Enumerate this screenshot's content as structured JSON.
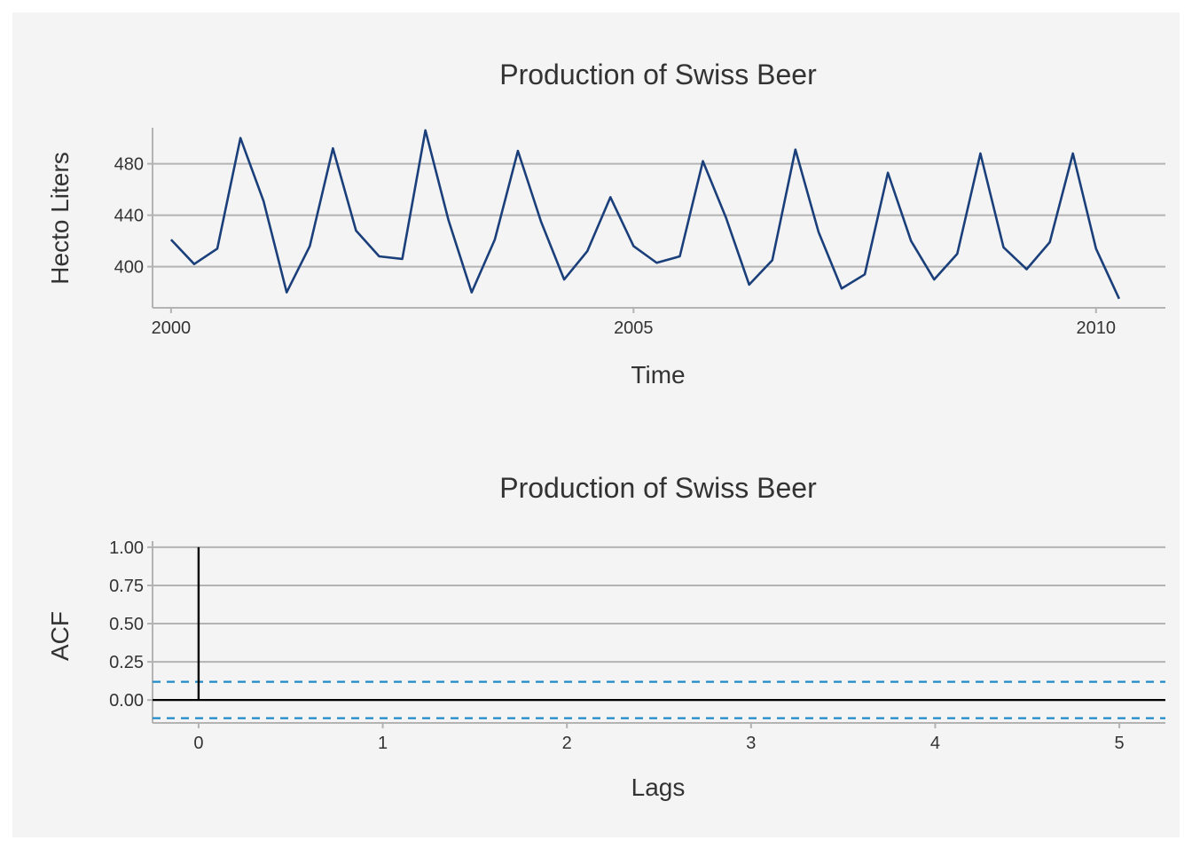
{
  "colors": {
    "panel_background": "#f4f4f4",
    "series_line": "#1a3f7a",
    "acf_bar": "#000000",
    "confidence_band": "#1f8ac9",
    "grid": "#b3b3b3"
  },
  "chart_data": [
    {
      "type": "line",
      "title": "Production of Swiss Beer",
      "xlabel": "Time",
      "ylabel": "Hecto Liters",
      "xlim": [
        1999.8,
        2010.75
      ],
      "ylim": [
        368,
        508
      ],
      "x_ticks": [
        2000,
        2005,
        2010
      ],
      "x_tick_labels": [
        "2000",
        "2005",
        "2010"
      ],
      "y_ticks": [
        400,
        440,
        480
      ],
      "y_tick_labels": [
        "400",
        "440",
        "480"
      ],
      "grid": "horizontal",
      "series": [
        {
          "x": [
            2000.0,
            2000.25,
            2000.5,
            2000.75,
            2001.0,
            2001.25,
            2001.5,
            2001.75,
            2002.0,
            2002.25,
            2002.5,
            2002.75,
            2003.0,
            2003.25,
            2003.5,
            2003.75,
            2004.0,
            2004.25,
            2004.5,
            2004.75,
            2005.0,
            2005.25,
            2005.5,
            2005.75,
            2006.0,
            2006.25,
            2006.5,
            2006.75,
            2007.0,
            2007.25,
            2007.5,
            2007.75,
            2008.0,
            2008.25,
            2008.5,
            2008.75,
            2009.0,
            2009.25,
            2009.5,
            2009.75,
            2010.0,
            2010.25
          ],
          "values": [
            421,
            402,
            414,
            500,
            451,
            380,
            416,
            492,
            428,
            408,
            406,
            506,
            436,
            380,
            421,
            490,
            435,
            390,
            412,
            454,
            416,
            403,
            408,
            482,
            438,
            386,
            405,
            491,
            427,
            383,
            394,
            473,
            420,
            390,
            410,
            488,
            415,
            398,
            419,
            488,
            414,
            375
          ]
        }
      ]
    },
    {
      "type": "bar",
      "title": "Production of Swiss Beer",
      "xlabel": "Lags",
      "ylabel": "ACF",
      "xlim": [
        -0.25,
        5.25
      ],
      "ylim": [
        -0.15,
        1.04
      ],
      "x_ticks": [
        0,
        1,
        2,
        3,
        4,
        5
      ],
      "x_tick_labels": [
        "0",
        "1",
        "2",
        "3",
        "4",
        "5"
      ],
      "y_ticks": [
        0,
        0.25,
        0.5,
        0.75,
        1
      ],
      "y_tick_labels": [
        "0.00",
        "0.25",
        "0.50",
        "0.75",
        "1.00"
      ],
      "grid": "horizontal",
      "lags": [
        0
      ],
      "values": [
        1.0
      ],
      "confidence_bounds": [
        0.119,
        -0.119
      ]
    }
  ]
}
